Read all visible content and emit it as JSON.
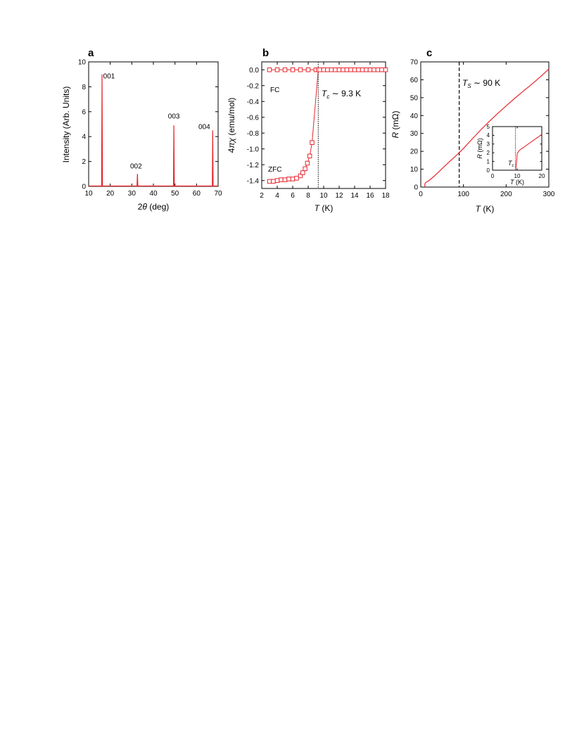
{
  "colors": {
    "data": "#e8262d",
    "axis": "#000000"
  },
  "chart_data": [
    {
      "panel": "a",
      "type": "line",
      "xlabel_prefix": "2",
      "xlabel_var": "θ",
      "xlabel_suffix": " (deg)",
      "ylabel": "Intensity (Arb. Units)",
      "xlim": [
        10,
        70
      ],
      "ylim": [
        0,
        10
      ],
      "xticks": [
        "10",
        "20",
        "30",
        "40",
        "50",
        "60",
        "70"
      ],
      "yticks": [
        "0",
        "2",
        "4",
        "6",
        "8",
        "10"
      ],
      "peaks": [
        {
          "label": "001",
          "x": 16.2,
          "y": 9.0
        },
        {
          "label": "002",
          "x": 32.6,
          "y": 1.0
        },
        {
          "label": "003",
          "x": 49.5,
          "y": 4.9
        },
        {
          "label": "004",
          "x": 67.5,
          "y": 4.5
        }
      ],
      "baseline": 0.03,
      "grid": false
    },
    {
      "panel": "b",
      "type": "scatter",
      "xlabel_var": "T",
      "xlabel_suffix": " (K)",
      "ylabel_prefix": "4",
      "ylabel_var": "πχ",
      "ylabel_suffix": " (emu/mol)",
      "xlim": [
        2,
        18
      ],
      "ylim": [
        -1.5,
        0.1
      ],
      "xticks": [
        "2",
        "4",
        "6",
        "8",
        "10",
        "12",
        "14",
        "16",
        "18"
      ],
      "yticks": [
        "0.0",
        "-0.2",
        "-0.4",
        "-0.6",
        "-0.8",
        "-1.0",
        "-1.2",
        "-1.4"
      ],
      "series": [
        {
          "name": "FC",
          "x": [
            3,
            4,
            5,
            6,
            7,
            8,
            9,
            9.3,
            9.5,
            10,
            10.5,
            11,
            11.5,
            12,
            12.5,
            13,
            13.5,
            14,
            14.5,
            15,
            15.5,
            16,
            16.5,
            17,
            17.5,
            18
          ],
          "y": [
            0,
            0,
            0,
            0,
            0,
            0,
            0,
            0,
            0,
            0,
            0,
            0,
            0,
            0,
            0,
            0,
            0,
            0,
            0,
            0,
            0,
            0,
            0,
            0,
            0,
            0
          ]
        },
        {
          "name": "ZFC",
          "x": [
            3,
            3.5,
            4,
            4.5,
            5,
            5.5,
            6,
            6.5,
            7,
            7.3,
            7.6,
            7.9,
            8.2,
            8.5,
            9.3
          ],
          "y": [
            -1.41,
            -1.41,
            -1.4,
            -1.39,
            -1.39,
            -1.38,
            -1.38,
            -1.37,
            -1.34,
            -1.3,
            -1.25,
            -1.18,
            -1.09,
            -0.92,
            0
          ]
        }
      ],
      "annotation": {
        "var": "T",
        "sub": "c",
        "text": " ∼ 9.3 K",
        "x": 9.3
      },
      "grid": false
    },
    {
      "panel": "c",
      "type": "line",
      "xlabel_var": "T",
      "xlabel_suffix": " (K)",
      "ylabel_var": "R",
      "ylabel_suffix": " (mΩ)",
      "xlim": [
        0,
        300
      ],
      "ylim": [
        0,
        70
      ],
      "xticks": [
        "0",
        "100",
        "200",
        "300"
      ],
      "yticks": [
        "0",
        "10",
        "20",
        "30",
        "40",
        "50",
        "60",
        "70"
      ],
      "x": [
        9.3,
        10,
        12,
        15,
        20,
        30,
        40,
        50,
        60,
        70,
        80,
        90,
        100,
        120,
        140,
        160,
        180,
        200,
        220,
        240,
        260,
        280,
        300
      ],
      "y": [
        0.3,
        2.0,
        2.6,
        3.0,
        3.8,
        5.8,
        8.0,
        10.3,
        12.6,
        14.8,
        17.0,
        19.2,
        21.6,
        26.8,
        31.8,
        36.6,
        41.1,
        45.4,
        49.6,
        53.6,
        57.5,
        61.6,
        66.0
      ],
      "annotation": {
        "var": "T",
        "sub": "S",
        "text": " ∼ 90 K",
        "x": 90
      },
      "inset": {
        "xlabel_var": "T",
        "xlabel_suffix": " (K)",
        "ylabel_var": "R",
        "ylabel_suffix": " (mΩ)",
        "xlim": [
          0,
          20
        ],
        "ylim": [
          0,
          5
        ],
        "xticks": [
          "0",
          "10",
          "20"
        ],
        "yticks": [
          "0",
          "1",
          "2",
          "3",
          "4",
          "5"
        ],
        "x": [
          9.3,
          9.5,
          9.8,
          10,
          10.5,
          11,
          12,
          13,
          14,
          15,
          16,
          17,
          18,
          19,
          20
        ],
        "y": [
          0,
          0.3,
          1.0,
          1.9,
          2.1,
          2.3,
          2.5,
          2.7,
          2.9,
          3.1,
          3.3,
          3.5,
          3.7,
          3.9,
          4.1
        ],
        "annotation": {
          "var": "T",
          "sub": "c",
          "x": 9.3
        }
      },
      "grid": false
    }
  ]
}
